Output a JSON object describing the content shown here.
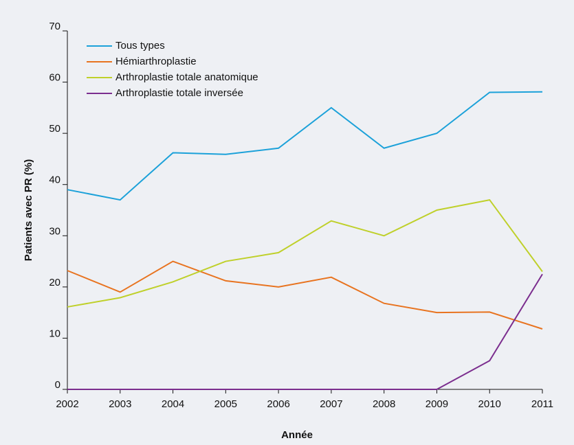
{
  "chart_data": {
    "type": "line",
    "xlabel": "Année",
    "ylabel": "Patients avec PR (%)",
    "categories": [
      "2002",
      "2003",
      "2004",
      "2005",
      "2006",
      "2007",
      "2008",
      "2009",
      "2010",
      "2011"
    ],
    "series": [
      {
        "name": "Tous types",
        "color": "#1ba1d9",
        "values": [
          39,
          37,
          46.2,
          45.9,
          47.1,
          55,
          47.1,
          50,
          58,
          58.1
        ]
      },
      {
        "name": "Hémiarthroplastie",
        "color": "#e8731f",
        "values": [
          23.2,
          19,
          25,
          21.2,
          20,
          21.9,
          16.8,
          15,
          15.1,
          11.8
        ]
      },
      {
        "name": "Arthroplastie totale anatomique",
        "color": "#bfd02a",
        "values": [
          16.1,
          17.9,
          21,
          25,
          26.7,
          32.9,
          30,
          35,
          37,
          23
        ]
      },
      {
        "name": "Arthroplastie totale inversée",
        "color": "#7b2d8e",
        "values": [
          0,
          0,
          0,
          0,
          0,
          0,
          0,
          0,
          5.6,
          22.5
        ]
      }
    ],
    "ylim": [
      0,
      70
    ],
    "yticks": [
      0,
      10,
      20,
      30,
      40,
      50,
      60,
      70
    ],
    "legend": "upper left",
    "grid": false
  }
}
